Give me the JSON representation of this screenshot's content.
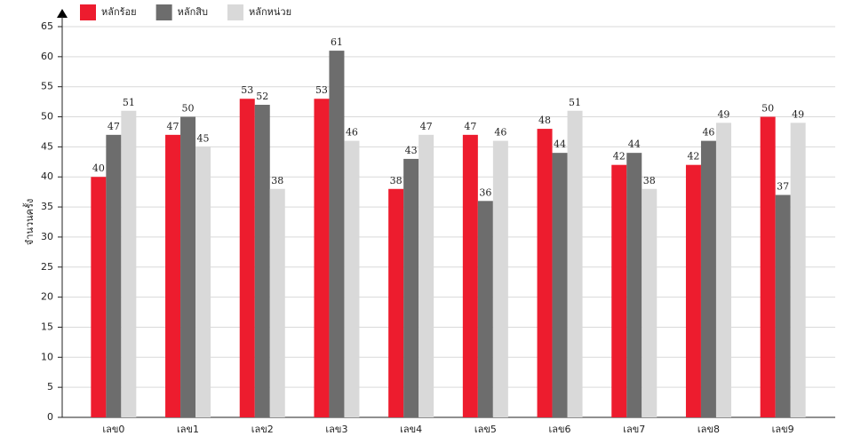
{
  "chart_data": {
    "type": "bar",
    "y_label": "จำนวนครั้ง",
    "categories": [
      "เลข0",
      "เลข1",
      "เลข2",
      "เลข3",
      "เลข4",
      "เลข5",
      "เลข6",
      "เลข7",
      "เลข8",
      "เลข9"
    ],
    "series": [
      {
        "name": "หลักร้อย",
        "color": "#ed1c2e",
        "values": [
          40,
          47,
          53,
          53,
          38,
          47,
          48,
          42,
          42,
          50
        ]
      },
      {
        "name": "หลักสิบ",
        "color": "#6d6d6d",
        "values": [
          47,
          50,
          52,
          61,
          43,
          36,
          44,
          44,
          46,
          37
        ]
      },
      {
        "name": "หลักหน่วย",
        "color": "#d9d9d9",
        "values": [
          51,
          45,
          38,
          46,
          47,
          46,
          51,
          38,
          49,
          49
        ]
      }
    ],
    "ylim": [
      0,
      65
    ],
    "yticks": [
      0,
      5,
      10,
      15,
      20,
      25,
      30,
      35,
      40,
      45,
      50,
      55,
      60,
      65
    ],
    "grid": true
  }
}
